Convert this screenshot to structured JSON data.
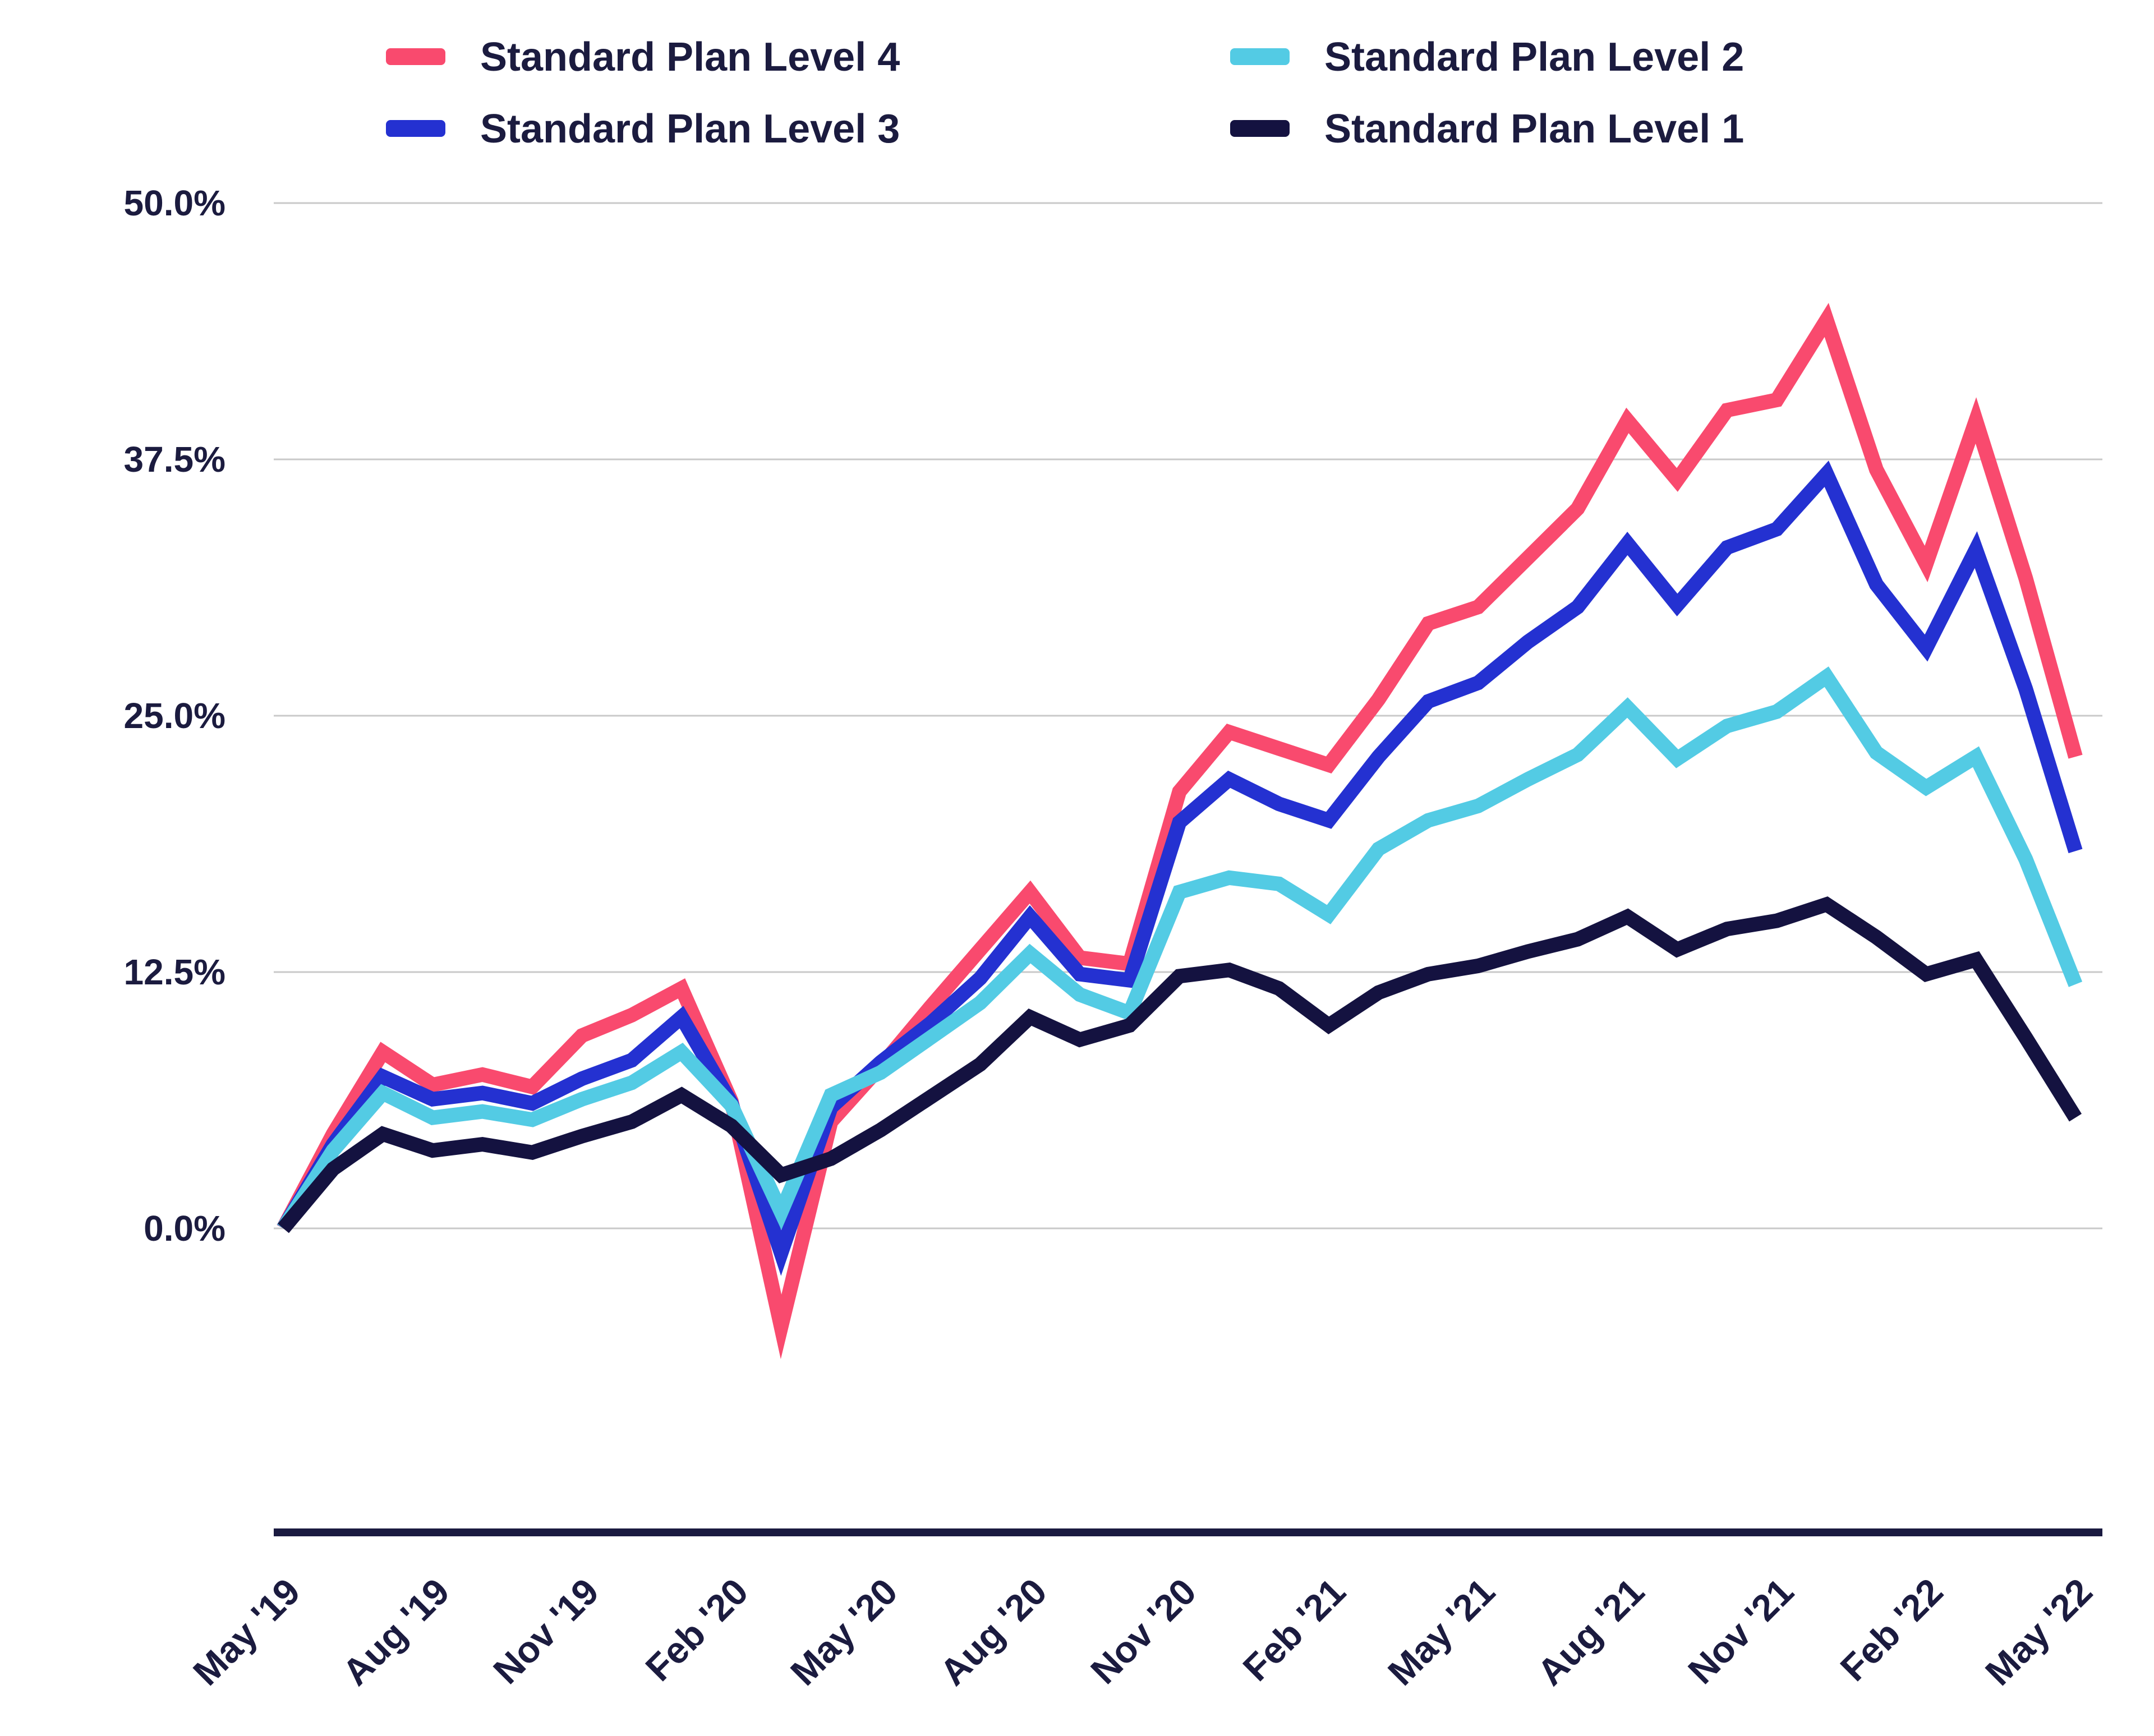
{
  "chart_data": {
    "type": "line",
    "title": "",
    "xlabel": "",
    "ylabel": "",
    "grid": true,
    "legend_position": "top",
    "ylim": [
      -15,
      50
    ],
    "y_tick_values": [
      50,
      37.5,
      25,
      12.5,
      0
    ],
    "y_ticks": [
      "50.0%",
      "37.5%",
      "25.0%",
      "12.5%",
      "0.0%"
    ],
    "x": [
      "May '19",
      "Jun '19",
      "Jul '19",
      "Aug '19",
      "Sep '19",
      "Oct '19",
      "Nov '19",
      "Dec '19",
      "Jan '20",
      "Feb '20",
      "Mar '20",
      "Apr '20",
      "May '20",
      "Jun '20",
      "Jul '20",
      "Aug '20",
      "Sep '20",
      "Oct '20",
      "Nov '20",
      "Dec '20",
      "Jan '21",
      "Feb '21",
      "Mar '21",
      "Apr '21",
      "May '21",
      "Jun '21",
      "Jul '21",
      "Aug '21",
      "Sep '21",
      "Oct '21",
      "Nov '21",
      "Dec '21",
      "Jan '22",
      "Feb '22",
      "Mar '22",
      "Apr '22",
      "May '22"
    ],
    "x_tick_every": 3,
    "x_tick_labels": [
      "May '19",
      "Aug '19",
      "Nov '19",
      "Feb '20",
      "May '20",
      "Aug '20",
      "Nov '20",
      "Feb '21",
      "May '21",
      "Aug '21",
      "Nov '21",
      "Feb '22",
      "May '22"
    ],
    "series": [
      {
        "name": "Standard Plan Level 4",
        "color": "#F94A6E",
        "values": [
          0,
          4.6,
          8.6,
          7.0,
          7.5,
          6.9,
          9.4,
          10.4,
          11.7,
          6.2,
          -4.8,
          5.2,
          7.9,
          10.8,
          13.6,
          16.4,
          13.2,
          12.9,
          21.3,
          24.2,
          23.4,
          22.6,
          25.8,
          29.5,
          30.3,
          32.7,
          35.1,
          39.4,
          36.5,
          39.9,
          40.4,
          44.3,
          37.0,
          32.4,
          39.4,
          31.7,
          23.0
        ]
      },
      {
        "name": "Standard Plan Level 3",
        "color": "#2431D1",
        "values": [
          0,
          4.1,
          7.4,
          6.3,
          6.6,
          6.1,
          7.3,
          8.2,
          10.3,
          6.1,
          -1.2,
          5.9,
          8.1,
          10.0,
          12.2,
          15.2,
          12.4,
          12.1,
          19.8,
          21.9,
          20.7,
          19.9,
          23.0,
          25.7,
          26.6,
          28.6,
          30.3,
          33.4,
          30.4,
          33.2,
          34.1,
          36.8,
          31.4,
          28.3,
          33.1,
          26.3,
          18.4
        ]
      },
      {
        "name": "Standard Plan Level 2",
        "color": "#53CBE4",
        "values": [
          0,
          3.8,
          6.6,
          5.4,
          5.7,
          5.3,
          6.3,
          7.1,
          8.6,
          6.0,
          0.8,
          6.5,
          7.6,
          9.3,
          11.0,
          13.4,
          11.4,
          10.5,
          16.4,
          17.1,
          16.8,
          15.3,
          18.5,
          19.9,
          20.6,
          21.9,
          23.1,
          25.4,
          22.9,
          24.5,
          25.2,
          26.9,
          23.2,
          21.5,
          23.0,
          18.0,
          11.9
        ]
      },
      {
        "name": "Standard Plan Level 1",
        "color": "#141240",
        "values": [
          0,
          2.9,
          4.6,
          3.8,
          4.1,
          3.7,
          4.5,
          5.2,
          6.5,
          5.0,
          2.6,
          3.4,
          4.8,
          6.4,
          8.0,
          10.3,
          9.2,
          9.9,
          12.3,
          12.6,
          11.7,
          9.9,
          11.5,
          12.4,
          12.8,
          13.5,
          14.1,
          15.2,
          13.6,
          14.6,
          15.0,
          15.8,
          14.2,
          12.4,
          13.1,
          9.3,
          5.4
        ]
      }
    ],
    "legend_items": [
      {
        "series_index": 0
      },
      {
        "series_index": 2
      },
      {
        "series_index": 1
      },
      {
        "series_index": 3
      }
    ]
  },
  "colors": {
    "background": "#FFFFFF",
    "gridline": "#C9C9C9",
    "axis_line": "#1A1A40",
    "text": "#1B1B3F"
  }
}
